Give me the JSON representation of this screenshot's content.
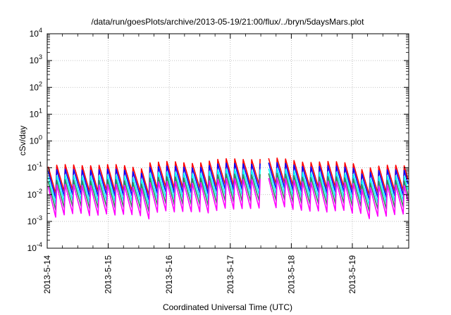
{
  "chart_data": {
    "type": "line",
    "title": "/data/run/goesPlots/archive/2013-05-19/21:00/flux/../bryn/5daysMars.plot",
    "xlabel": "Coordinated Universal Time (UTC)",
    "ylabel": "cSv/day",
    "x_tick_labels": [
      "2013-5-14",
      "2013-5-15",
      "2013-5-16",
      "2013-5-17",
      "2013-5-18",
      "2013-5-19"
    ],
    "y_scale": "log",
    "ylim": [
      0.0001,
      10000
    ],
    "y_tick_labels": [
      {
        "base": "10",
        "exp": "4"
      },
      {
        "base": "10",
        "exp": "3"
      },
      {
        "base": "10",
        "exp": "2"
      },
      {
        "base": "10",
        "exp": "1"
      },
      {
        "base": "10",
        "exp": "0"
      },
      {
        "base": "10",
        "exp": "-1"
      },
      {
        "base": "10",
        "exp": "-2"
      },
      {
        "base": "10",
        "exp": "-3"
      },
      {
        "base": "10",
        "exp": "-4"
      }
    ],
    "grid": true,
    "cycles_per_day": 7.2,
    "series": [
      {
        "color": "#ff0000",
        "peak": 0.11,
        "trough": 0.012
      },
      {
        "color": "#0000ff",
        "peak": 0.075,
        "trough": 0.008
      },
      {
        "color": "#00ffff",
        "peak": 0.045,
        "trough": 0.005
      },
      {
        "color": "#2e8b57",
        "peak": 0.03,
        "trough": 0.003
      },
      {
        "color": "#ff00ff",
        "peak": 0.02,
        "trough": 0.0016
      }
    ],
    "elevated_period": {
      "start_day": 1.6,
      "end_day": 5.0,
      "factor": 1.7
    },
    "gap_period": {
      "start_day": 3.45,
      "end_day": 3.52
    }
  }
}
